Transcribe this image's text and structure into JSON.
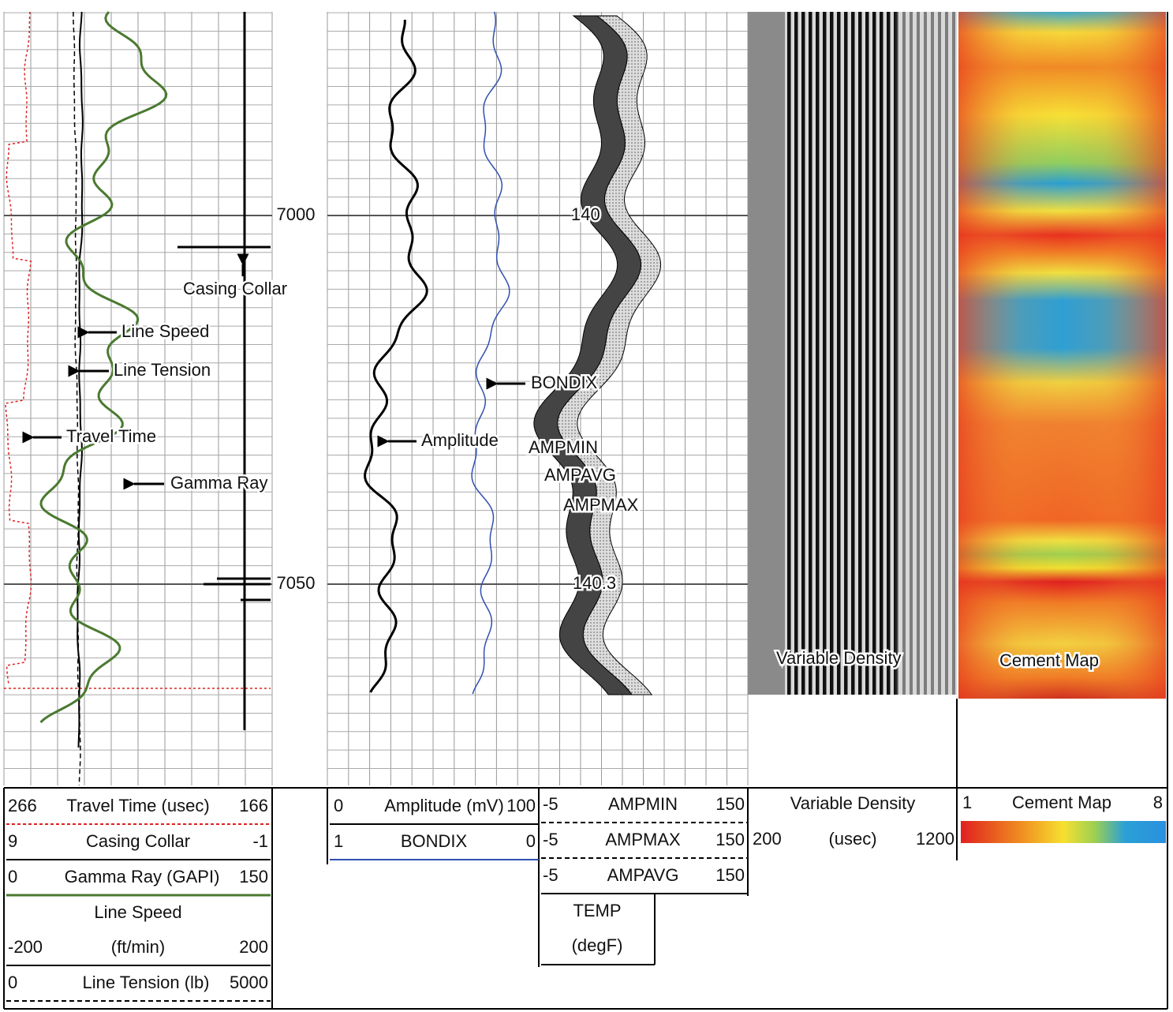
{
  "depths": [
    7000,
    7050
  ],
  "annotations": {
    "casing_collar": "Casing Collar",
    "line_speed": "Line Speed",
    "line_tension": "Line Tension",
    "travel_time": "Travel Time",
    "gamma_ray": "Gamma Ray",
    "amplitude": "Amplitude",
    "bondix": "BONDIX",
    "ampmin": "AMPMIN",
    "ampavg": "AMPAVG",
    "ampmax": "AMPMAX",
    "temp_top": 140,
    "temp_bottom": 140.3,
    "variable_density": "Variable Density",
    "cement_map": "Cement Map"
  },
  "header": {
    "track1": [
      {
        "left": 266,
        "name": "Travel Time (usec)",
        "right": 166
      },
      {
        "left": 9,
        "name": "Casing Collar",
        "right": -1
      },
      {
        "left": 0,
        "name": "Gamma Ray (GAPI)",
        "right": 150
      },
      {
        "name": "Line Speed",
        "left": -200,
        "unit": "(ft/min)",
        "right": 200
      },
      {
        "left": 0,
        "name": "Line Tension (lb)",
        "right": 5000
      }
    ],
    "track2": [
      {
        "left": 0,
        "name": "Amplitude (mV)",
        "right": 100
      },
      {
        "left": 1,
        "name": "BONDIX",
        "right": 0
      }
    ],
    "track3": [
      {
        "left": -5,
        "name": "AMPMIN",
        "right": 150
      },
      {
        "left": -5,
        "name": "AMPMAX",
        "right": 150
      },
      {
        "left": -5,
        "name": "AMPAVG",
        "right": 150
      }
    ],
    "temp": {
      "name": "TEMP",
      "unit": "(degF)"
    },
    "vdl": {
      "name": "Variable Density",
      "left": 200,
      "unit": "(usec)",
      "right": 1200
    },
    "cement": {
      "left": 1,
      "name": "Cement Map",
      "right": 8
    }
  }
}
